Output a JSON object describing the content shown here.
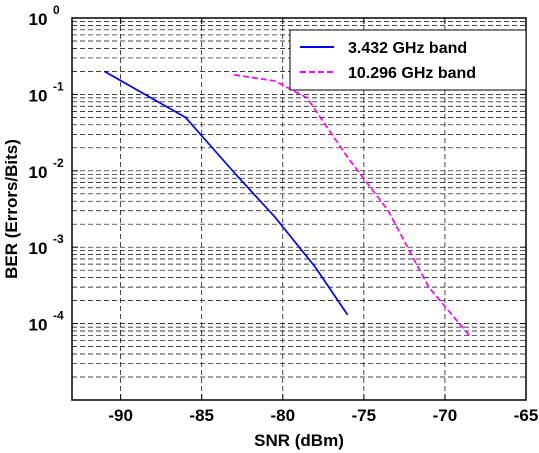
{
  "chart_data": {
    "type": "line",
    "xlabel": "SNR (dBm)",
    "ylabel": "BER (Errors/Bits)",
    "xlim": [
      -93,
      -65
    ],
    "ylim": [
      1e-05,
      1
    ],
    "yscale": "log",
    "grid": true,
    "legend_position": "top-right",
    "x_ticks": [
      -90,
      -85,
      -80,
      -75,
      -70,
      -65
    ],
    "y_ticks": [
      0.0001,
      0.001,
      0.01,
      0.1,
      1
    ],
    "y_tick_labels": [
      {
        "base": "10",
        "exp": "-4"
      },
      {
        "base": "10",
        "exp": "-3"
      },
      {
        "base": "10",
        "exp": "-2"
      },
      {
        "base": "10",
        "exp": "-1"
      },
      {
        "base": "10",
        "exp": "0"
      }
    ],
    "series": [
      {
        "name": "3.432 GHz band",
        "color": "#0000ff",
        "style": "solid",
        "points": [
          {
            "x": -91,
            "y": 0.2
          },
          {
            "x": -86,
            "y": 0.05
          },
          {
            "x": -83,
            "y": 0.0095
          },
          {
            "x": -80.5,
            "y": 0.0025
          },
          {
            "x": -78,
            "y": 0.00055
          },
          {
            "x": -76,
            "y": 0.00013
          }
        ]
      },
      {
        "name": "10.296 GHz band",
        "color": "#ff00ff",
        "style": "dashed",
        "points": [
          {
            "x": -83,
            "y": 0.18
          },
          {
            "x": -80.5,
            "y": 0.15
          },
          {
            "x": -78.5,
            "y": 0.09
          },
          {
            "x": -76,
            "y": 0.015
          },
          {
            "x": -73.5,
            "y": 0.003
          },
          {
            "x": -71,
            "y": 0.0003
          },
          {
            "x": -68.5,
            "y": 7e-05
          }
        ]
      }
    ]
  }
}
